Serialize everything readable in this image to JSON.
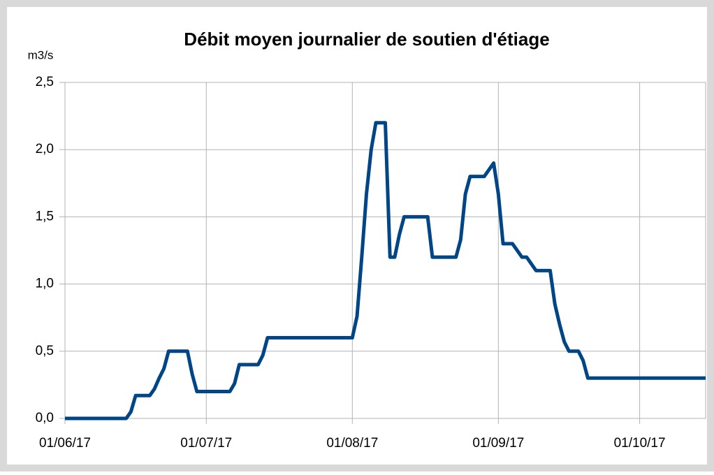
{
  "chart_data": {
    "type": "line",
    "title": "Débit moyen journalier de soutien d'étiage",
    "y_label": "m3/s",
    "x": [
      "2017-06-01",
      "2017-06-14",
      "2017-06-15",
      "2017-06-16",
      "2017-06-19",
      "2017-06-20",
      "2017-06-21",
      "2017-06-22",
      "2017-06-23",
      "2017-06-27",
      "2017-06-28",
      "2017-06-29",
      "2017-07-06",
      "2017-07-07",
      "2017-07-08",
      "2017-07-12",
      "2017-07-13",
      "2017-07-14",
      "2017-08-01",
      "2017-08-02",
      "2017-08-03",
      "2017-08-04",
      "2017-08-05",
      "2017-08-06",
      "2017-08-08",
      "2017-08-09",
      "2017-08-10",
      "2017-08-11",
      "2017-08-12",
      "2017-08-17",
      "2017-08-18",
      "2017-08-23",
      "2017-08-24",
      "2017-08-25",
      "2017-08-26",
      "2017-08-29",
      "2017-08-30",
      "2017-08-31",
      "2017-09-01",
      "2017-09-02",
      "2017-09-04",
      "2017-09-06",
      "2017-09-07",
      "2017-09-09",
      "2017-09-12",
      "2017-09-13",
      "2017-09-14",
      "2017-09-15",
      "2017-09-16",
      "2017-09-18",
      "2017-09-19",
      "2017-09-20",
      "2017-10-15"
    ],
    "series": [
      {
        "name": "Débit",
        "color": "#004586",
        "values": [
          0,
          0,
          0.05,
          0.17,
          0.17,
          0.22,
          0.3,
          0.37,
          0.5,
          0.5,
          0.33,
          0.2,
          0.2,
          0.26,
          0.4,
          0.4,
          0.47,
          0.6,
          0.6,
          0.76,
          1.2,
          1.67,
          2.0,
          2.2,
          2.2,
          1.2,
          1.2,
          1.37,
          1.5,
          1.5,
          1.2,
          1.2,
          1.33,
          1.67,
          1.8,
          1.8,
          1.85,
          1.9,
          1.67,
          1.3,
          1.3,
          1.2,
          1.2,
          1.1,
          1.1,
          0.85,
          0.7,
          0.57,
          0.5,
          0.5,
          0.43,
          0.3,
          0.3
        ]
      }
    ],
    "xlim": [
      "2017-06-01",
      "2017-10-15"
    ],
    "xticks": [
      {
        "value": "2017-06-01",
        "label": "01/06/17"
      },
      {
        "value": "2017-07-01",
        "label": "01/07/17"
      },
      {
        "value": "2017-08-01",
        "label": "01/08/17"
      },
      {
        "value": "2017-09-01",
        "label": "01/09/17"
      },
      {
        "value": "2017-10-01",
        "label": "01/10/17"
      }
    ],
    "ylim": [
      0,
      2.5
    ],
    "yticks": [
      {
        "value": 0,
        "label": "0,0"
      },
      {
        "value": 0.5,
        "label": "0,5"
      },
      {
        "value": 1,
        "label": "1,0"
      },
      {
        "value": 1.5,
        "label": "1,5"
      },
      {
        "value": 2,
        "label": "2,0"
      },
      {
        "value": 2.5,
        "label": "2,5"
      }
    ],
    "grid": true
  }
}
